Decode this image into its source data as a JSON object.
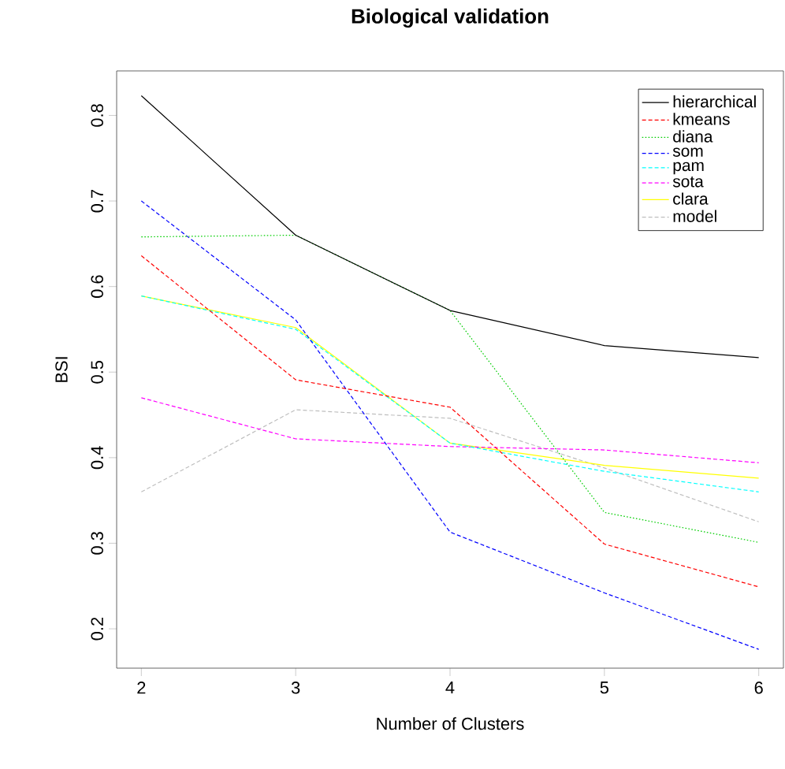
{
  "chart_data": {
    "type": "line",
    "title": "Biological validation",
    "xlabel": "Number of Clusters",
    "ylabel": "BSI",
    "x": [
      2,
      3,
      4,
      5,
      6
    ],
    "xlim": [
      1.84,
      6.16
    ],
    "ylim": [
      0.154,
      0.852
    ],
    "xticks": [
      2,
      3,
      4,
      5,
      6
    ],
    "yticks": [
      0.2,
      0.3,
      0.4,
      0.5,
      0.6,
      0.7,
      0.8
    ],
    "legend": "top right",
    "grid": false,
    "marker": "none",
    "series": [
      {
        "name": "hierarchical",
        "color": "#000000",
        "line_style": "solid",
        "values": [
          0.823,
          0.66,
          0.572,
          0.531,
          0.517
        ]
      },
      {
        "name": "kmeans",
        "color": "#ff0000",
        "line_style": "dashed",
        "values": [
          0.636,
          0.491,
          0.459,
          0.299,
          0.249
        ]
      },
      {
        "name": "diana",
        "color": "#00cd00",
        "line_style": "dotted",
        "values": [
          0.658,
          0.66,
          0.572,
          0.336,
          0.301
        ]
      },
      {
        "name": "som",
        "color": "#0000ff",
        "line_style": "dashed",
        "values": [
          0.7,
          0.561,
          0.313,
          0.242,
          0.176
        ]
      },
      {
        "name": "pam",
        "color": "#00ffff",
        "line_style": "dashed",
        "values": [
          0.589,
          0.55,
          0.417,
          0.384,
          0.36
        ]
      },
      {
        "name": "sota",
        "color": "#ff00ff",
        "line_style": "dashed",
        "values": [
          0.47,
          0.422,
          0.413,
          0.409,
          0.394
        ]
      },
      {
        "name": "clara",
        "color": "#ffff00",
        "line_style": "solid",
        "values": [
          0.589,
          0.552,
          0.417,
          0.391,
          0.376
        ]
      },
      {
        "name": "model",
        "color": "#bebebe",
        "line_style": "dashed",
        "values": [
          0.36,
          0.456,
          0.446,
          0.388,
          0.325
        ]
      }
    ]
  }
}
